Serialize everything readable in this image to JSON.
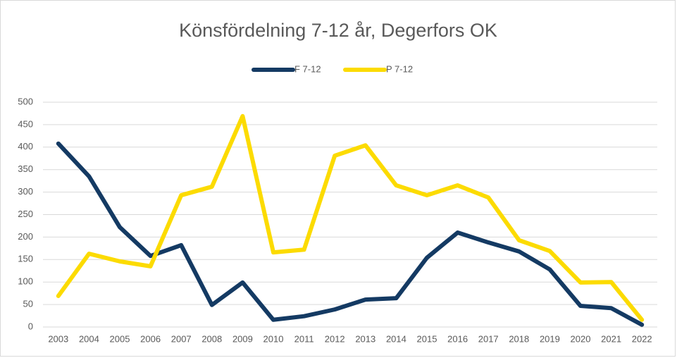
{
  "chart_data": {
    "type": "line",
    "title": "Könsfördelning 7-12 år, Degerfors OK",
    "categories": [
      "2003",
      "2004",
      "2005",
      "2006",
      "2007",
      "2008",
      "2009",
      "2010",
      "2011",
      "2012",
      "2013",
      "2014",
      "2015",
      "2016",
      "2017",
      "2018",
      "2019",
      "2020",
      "2021",
      "2022"
    ],
    "series": [
      {
        "name": "F 7-12",
        "color": "#143a63",
        "values": [
          408,
          335,
          222,
          158,
          182,
          49,
          99,
          16,
          24,
          39,
          61,
          64,
          154,
          210,
          188,
          168,
          128,
          47,
          42,
          5
        ]
      },
      {
        "name": "P 7-12",
        "color": "#fcdb00",
        "values": [
          69,
          163,
          146,
          135,
          293,
          312,
          469,
          166,
          172,
          381,
          404,
          315,
          293,
          315,
          288,
          193,
          169,
          99,
          100,
          16
        ]
      }
    ],
    "ylim": [
      0,
      500
    ],
    "yticks": [
      0,
      50,
      100,
      150,
      200,
      250,
      300,
      350,
      400,
      450,
      500
    ],
    "grid": true,
    "legend": "top"
  }
}
